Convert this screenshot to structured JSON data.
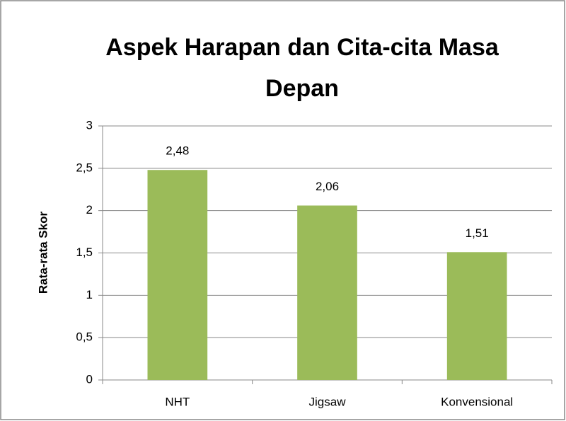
{
  "chart_data": {
    "type": "bar",
    "title": "Aspek Harapan dan Cita-cita Masa Depan",
    "y_label": "Rata-rata Skor",
    "categories": [
      "NHT",
      "Jigsaw",
      "Konvensional"
    ],
    "values": [
      2.48,
      2.06,
      1.51
    ],
    "value_labels": [
      "2,48",
      "2,06",
      "1,51"
    ],
    "color": "#9bbb59",
    "ylim": [
      0,
      3
    ],
    "yticks": [
      0,
      {
        "value": 0.5,
        "label": "0,5"
      },
      1,
      {
        "value": 1.5,
        "label": "1,5"
      },
      2,
      {
        "value": 2.5,
        "label": "2,5"
      },
      3
    ],
    "grid": true
  }
}
